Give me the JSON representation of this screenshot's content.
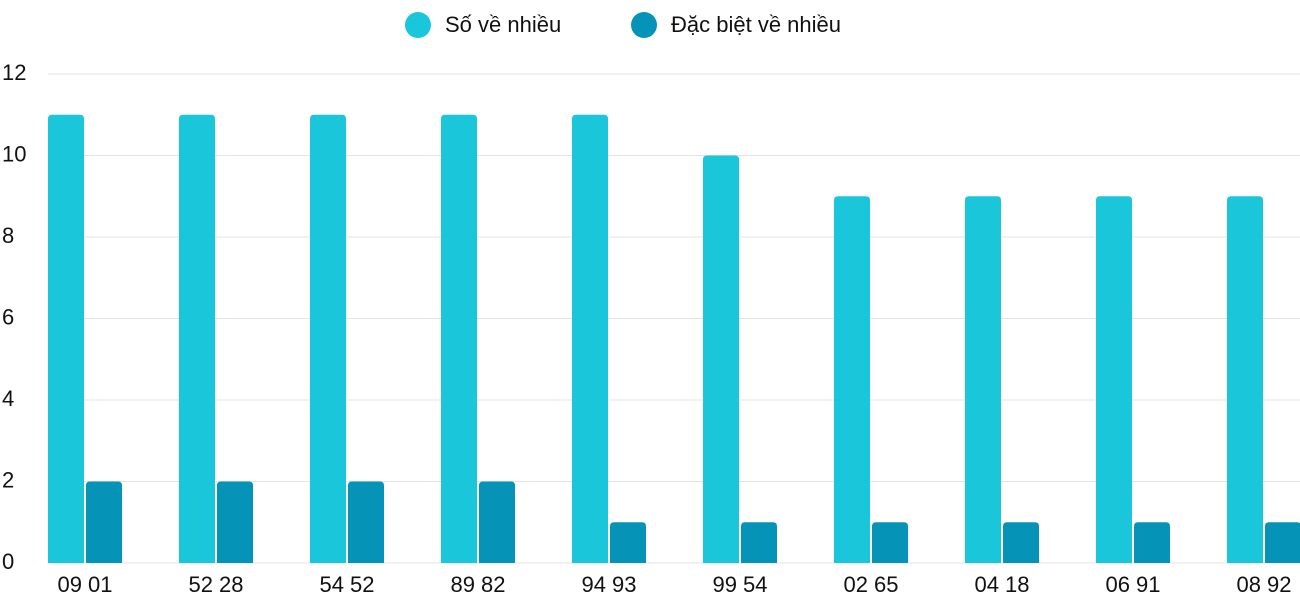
{
  "chart_data": {
    "type": "bar",
    "categories": [
      "09 01",
      "52 28",
      "54 52",
      "89 82",
      "94 93",
      "99 54",
      "02 65",
      "04 18",
      "06 91",
      "08 92"
    ],
    "series": [
      {
        "name": "Số về nhiều",
        "color": "#1ac6d9",
        "values": [
          11,
          11,
          11,
          11,
          11,
          10,
          9,
          9,
          9,
          9
        ]
      },
      {
        "name": "Đặc biệt về nhiều",
        "color": "#0594b8",
        "values": [
          2,
          2,
          2,
          2,
          1,
          1,
          1,
          1,
          1,
          1
        ]
      }
    ],
    "ylim": [
      0,
      12
    ],
    "yticks": [
      0,
      2,
      4,
      6,
      8,
      10,
      12
    ],
    "grid": true,
    "legend": "top"
  }
}
